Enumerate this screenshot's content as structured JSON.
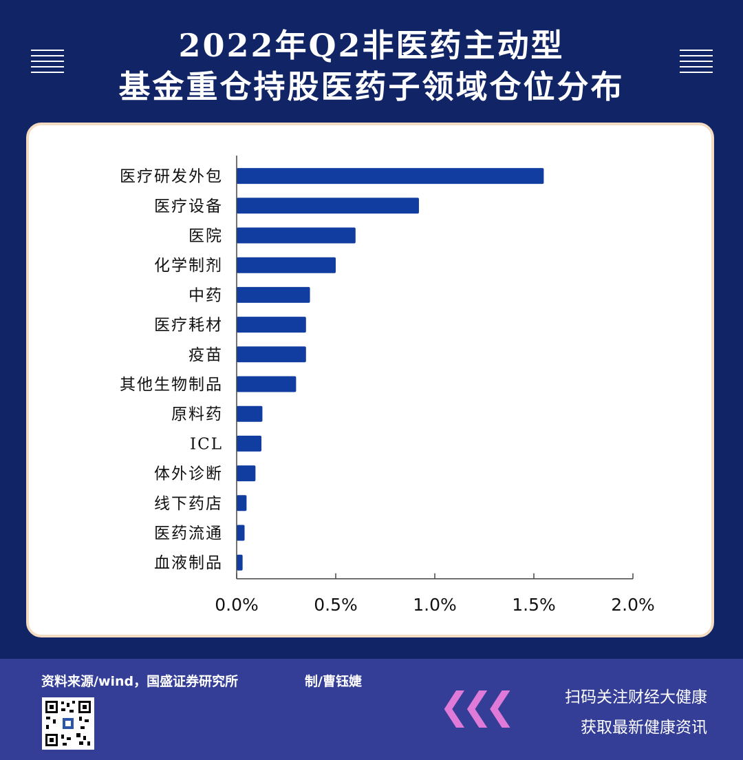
{
  "header": {
    "title_line1": "2022年Q2非医药主动型",
    "title_line2": "基金重仓持股医药子领域仓位分布"
  },
  "colors": {
    "background": "#102466",
    "bar": "#123da0",
    "footer": "#343e97",
    "card_border": "#f4dcc2",
    "chevron": "#e07ad8"
  },
  "chart_data": {
    "type": "bar",
    "orientation": "horizontal",
    "categories": [
      "医疗研发外包",
      "医疗设备",
      "医院",
      "化学制剂",
      "中药",
      "医疗耗材",
      "疫苗",
      "其他生物制品",
      "原料药",
      "ICL",
      "体外诊断",
      "线下药店",
      "医药流通",
      "血液制品"
    ],
    "values": [
      1.55,
      0.92,
      0.6,
      0.5,
      0.37,
      0.35,
      0.35,
      0.3,
      0.13,
      0.125,
      0.095,
      0.05,
      0.04,
      0.03
    ],
    "xlim": [
      0,
      2.0
    ],
    "xticks": [
      0,
      0.5,
      1.0,
      1.5,
      2.0
    ],
    "xtick_labels": [
      "0.0%",
      "0.5%",
      "1.0%",
      "1.5%",
      "2.0%"
    ],
    "grid": false
  },
  "footer": {
    "source": "资料来源/wind，国盛证券研究所",
    "credit": "制/曹钰婕",
    "chevrons": "❮❮❮",
    "cta_line1": "扫码关注财经大健康",
    "cta_line2": "获取最新健康资讯"
  }
}
